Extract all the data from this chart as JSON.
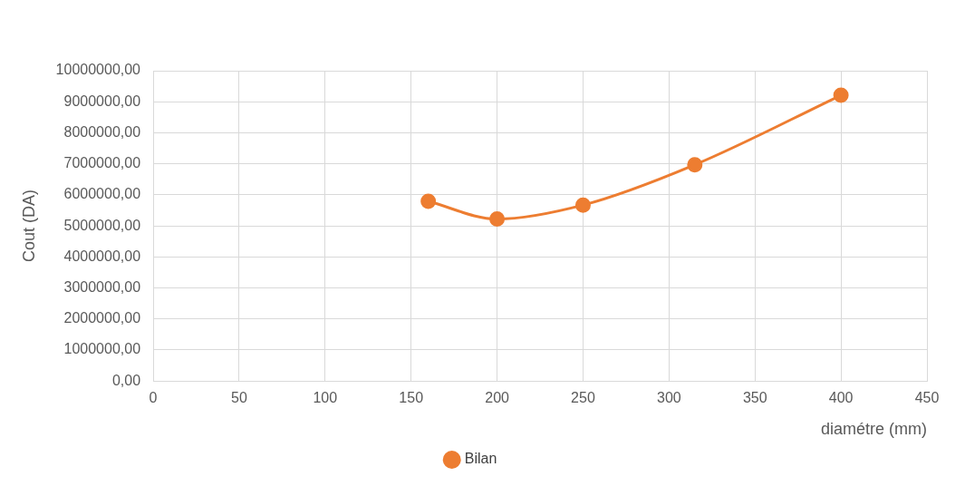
{
  "chart_data": {
    "type": "line",
    "xlabel": "diamétre (mm)",
    "ylabel": "Cout (DA)",
    "x": [
      160,
      200,
      250,
      315,
      400
    ],
    "series": [
      {
        "name": "Bilan",
        "color": "#ed7d31",
        "values": [
          5790000,
          5220000,
          5670000,
          6970000,
          9210000
        ]
      }
    ],
    "xlim": [
      0,
      450
    ],
    "xticks": [
      0,
      50,
      100,
      150,
      200,
      250,
      300,
      350,
      400,
      450
    ],
    "ylim": [
      0,
      10000000
    ],
    "yticks": [
      {
        "value": 0,
        "label": "0,00"
      },
      {
        "value": 1000000,
        "label": "1000000,00"
      },
      {
        "value": 2000000,
        "label": "2000000,00"
      },
      {
        "value": 3000000,
        "label": "3000000,00"
      },
      {
        "value": 4000000,
        "label": "4000000,00"
      },
      {
        "value": 5000000,
        "label": "5000000,00"
      },
      {
        "value": 6000000,
        "label": "6000000,00"
      },
      {
        "value": 7000000,
        "label": "7000000,00"
      },
      {
        "value": 8000000,
        "label": "8000000,00"
      },
      {
        "value": 9000000,
        "label": "9000000,00"
      },
      {
        "value": 10000000,
        "label": "10000000,00"
      }
    ],
    "grid": true,
    "legend": "bottom",
    "marker": "circle",
    "line_style": "solid"
  }
}
